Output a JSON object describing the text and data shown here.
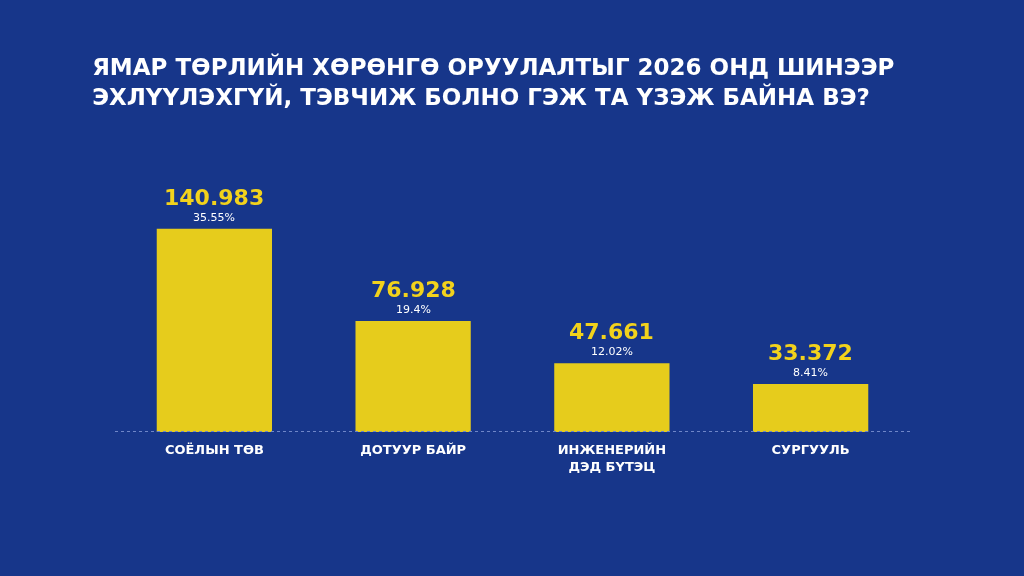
{
  "chart_data": {
    "type": "bar",
    "title": "ЯМАР ТӨРЛИЙН ХӨРӨНГӨ ОРУУЛАЛТЫГ 2026 ОНД ШИНЭЭР ЭХЛҮҮЛЭХГҮЙ, ТЭВЧИЖ БОЛНО ГЭЖ ТА ҮЗЭЖ БАЙНА ВЭ?",
    "categories": [
      "СОЁЛЫН ТӨВ",
      "ДОТУУР БАЙР",
      "ИНЖЕНЕРИЙН ДЭД БҮТЭЦ",
      "СУРГУУЛЬ"
    ],
    "values": [
      140.983,
      76.928,
      47.661,
      33.372
    ],
    "color": "#e6cc1c",
    "data_labels": true,
    "annotations": [
      {
        "text": "35.55%",
        "x": "СОЁЛЫН ТӨВ",
        "y": 140.983
      },
      {
        "text": "19.4%",
        "x": "ДОТУУР БАЙР",
        "y": 76.928
      },
      {
        "text": "12.02%",
        "x": "ИНЖЕНЕРИЙН ДЭД БҮТЭЦ",
        "y": 47.661
      },
      {
        "text": "8.41%",
        "x": "СУРГУУЛЬ",
        "y": 33.372
      }
    ],
    "grid": false,
    "legend": false,
    "tick_labels": "x"
  }
}
